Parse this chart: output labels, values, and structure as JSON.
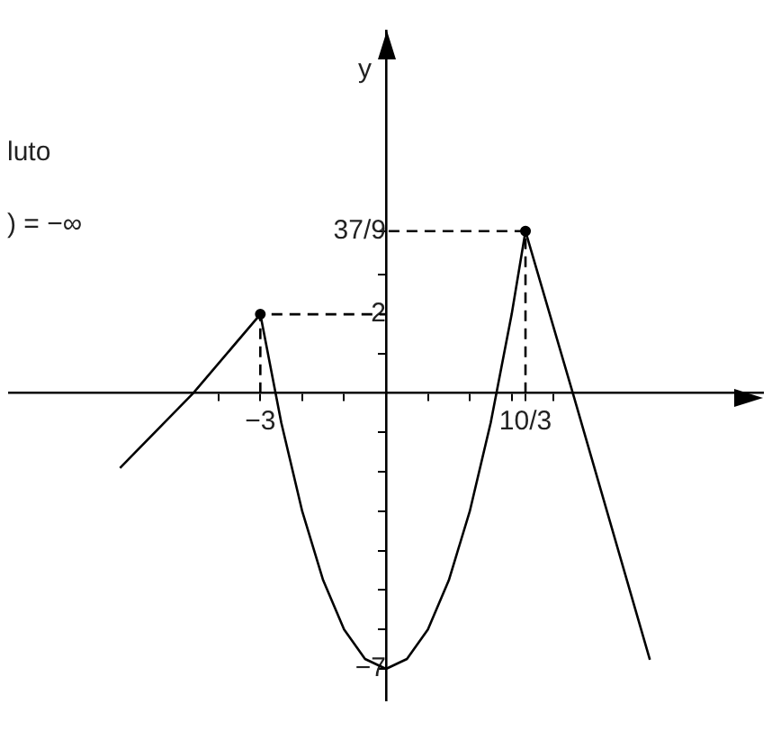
{
  "chart_data": {
    "type": "line",
    "ylabel": "y",
    "annotations": [
      "luto",
      ") = −∞"
    ],
    "xlim": [
      -9,
      9
    ],
    "ylim": [
      -7.8,
      9.2
    ],
    "xticks": [
      {
        "value": -4,
        "label": null
      },
      {
        "value": -3,
        "label": "−3"
      },
      {
        "value": -2,
        "label": null
      },
      {
        "value": -1,
        "label": null
      },
      {
        "value": 1,
        "label": null
      },
      {
        "value": 2,
        "label": null
      },
      {
        "value": 3,
        "label": null
      },
      {
        "value": 3.33,
        "label": "10/3"
      },
      {
        "value": 4,
        "label": null
      }
    ],
    "yticks": [
      {
        "value": -7,
        "label": "−7"
      },
      {
        "value": -6,
        "label": null
      },
      {
        "value": -5,
        "label": null
      },
      {
        "value": -4,
        "label": null
      },
      {
        "value": -3,
        "label": null
      },
      {
        "value": -2,
        "label": null
      },
      {
        "value": -1,
        "label": null
      },
      {
        "value": 1,
        "label": null
      },
      {
        "value": 2,
        "label": "2"
      },
      {
        "value": 3,
        "label": null
      },
      {
        "value": 4.11,
        "label": "37/9"
      }
    ],
    "grid": false,
    "legend": false,
    "series": [
      {
        "type": "line",
        "color": "#000000",
        "marker": "none",
        "x": [
          -6.35,
          -4.6,
          -3,
          -2.5,
          -2,
          -1.5,
          -1,
          -0.5,
          0,
          0.5,
          1,
          1.5,
          2,
          2.5,
          3,
          3.33,
          4.46,
          6.3
        ],
        "values": [
          -1.9,
          0,
          2,
          -0.75,
          -3,
          -4.75,
          -6,
          -6.75,
          -7,
          -6.75,
          -6,
          -4.75,
          -3,
          -0.75,
          2,
          4.11,
          0,
          -6.77
        ]
      },
      {
        "type": "line",
        "color": "#000000",
        "marker": "none",
        "line_style": "dashed",
        "x": [
          -3,
          -3,
          0
        ],
        "values": [
          0,
          2,
          2
        ]
      },
      {
        "type": "line",
        "color": "#000000",
        "marker": "none",
        "line_style": "dashed",
        "x": [
          3.33,
          3.33,
          0
        ],
        "values": [
          0,
          4.11,
          4.11
        ]
      },
      {
        "type": "scatter",
        "color": "#000000",
        "marker": "circle",
        "x": [
          -3,
          3.33
        ],
        "values": [
          2,
          4.11
        ]
      }
    ]
  }
}
